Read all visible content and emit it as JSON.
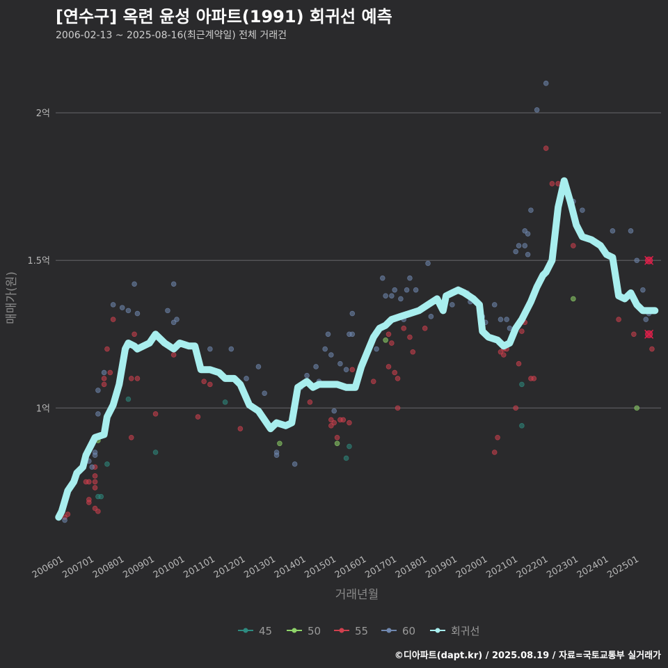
{
  "header": {
    "title": "[연수구] 옥련 윤성 아파트(1991) 회귀선 예측",
    "subtitle": "2006-02-13 ~ 2025-08-16(최근계약일) 전체 거래건"
  },
  "footer": {
    "credit": "©디아파트(dapt.kr) / 2025.08.19 / 자료=국토교통부 실거래가"
  },
  "colors": {
    "background": "#2a2a2c",
    "grid": "#5a5a5e",
    "s45": "#2e8b80",
    "s50": "#8fd46a",
    "s55": "#d0404e",
    "s60": "#7088b0",
    "regression": "#a8eeee",
    "highlight": "#e0204a"
  },
  "chart_data": {
    "type": "scatter",
    "title": "[연수구] 옥련 윤성 아파트(1991) 회귀선 예측",
    "xlabel": "거래년월",
    "ylabel": "매매가(원)",
    "x_unit": "year (decimal)",
    "y_unit": "억원",
    "xlim": [
      2005.9,
      2025.9
    ],
    "ylim": [
      0.52,
      2.17
    ],
    "x_ticks": [
      {
        "value": 2006,
        "label": "200601"
      },
      {
        "value": 2007,
        "label": "200701"
      },
      {
        "value": 2008,
        "label": "200801"
      },
      {
        "value": 2009,
        "label": "200901"
      },
      {
        "value": 2010,
        "label": "201001"
      },
      {
        "value": 2011,
        "label": "201101"
      },
      {
        "value": 2012,
        "label": "201201"
      },
      {
        "value": 2013,
        "label": "201301"
      },
      {
        "value": 2014,
        "label": "201401"
      },
      {
        "value": 2015,
        "label": "201501"
      },
      {
        "value": 2016,
        "label": "201601"
      },
      {
        "value": 2017,
        "label": "201701"
      },
      {
        "value": 2018,
        "label": "201801"
      },
      {
        "value": 2019,
        "label": "201901"
      },
      {
        "value": 2020,
        "label": "202001"
      },
      {
        "value": 2021,
        "label": "202101"
      },
      {
        "value": 2022,
        "label": "202201"
      },
      {
        "value": 2023,
        "label": "202301"
      },
      {
        "value": 2024,
        "label": "202401"
      },
      {
        "value": 2025,
        "label": "202501"
      }
    ],
    "y_ticks": [
      {
        "value": 1.0,
        "label": "1억"
      },
      {
        "value": 1.5,
        "label": "1.5억"
      },
      {
        "value": 2.0,
        "label": "2억"
      }
    ],
    "legend": {
      "position": "bottom",
      "items": [
        {
          "key": "s45",
          "label": "45"
        },
        {
          "key": "s50",
          "label": "50"
        },
        {
          "key": "s55",
          "label": "55"
        },
        {
          "key": "s60",
          "label": "60"
        },
        {
          "key": "regression",
          "label": "회귀선"
        }
      ]
    },
    "series": [
      {
        "name": "45",
        "color_key": "s45",
        "points": [
          [
            2007.3,
            0.7
          ],
          [
            2007.4,
            0.7
          ],
          [
            2007.6,
            0.81
          ],
          [
            2008.3,
            1.03
          ],
          [
            2009.2,
            0.85
          ],
          [
            2011.5,
            1.02
          ],
          [
            2015.5,
            0.83
          ],
          [
            2015.6,
            0.87
          ],
          [
            2021.3,
            1.08
          ],
          [
            2021.3,
            0.94
          ]
        ]
      },
      {
        "name": "50",
        "color_key": "s50",
        "points": [
          [
            2007.3,
            0.89
          ],
          [
            2013.3,
            0.88
          ],
          [
            2015.2,
            0.88
          ],
          [
            2016.8,
            1.23
          ],
          [
            2023.0,
            1.37
          ],
          [
            2025.1,
            1.0
          ]
        ]
      },
      {
        "name": "55",
        "color_key": "s55",
        "points": [
          [
            2006.2,
            0.63
          ],
          [
            2006.3,
            0.64
          ],
          [
            2006.9,
            0.75
          ],
          [
            2007.0,
            0.75
          ],
          [
            2007.0,
            0.69
          ],
          [
            2007.0,
            0.68
          ],
          [
            2007.2,
            0.73
          ],
          [
            2007.2,
            0.66
          ],
          [
            2007.2,
            0.75
          ],
          [
            2007.2,
            0.77
          ],
          [
            2007.2,
            0.8
          ],
          [
            2007.3,
            0.65
          ],
          [
            2007.5,
            1.1
          ],
          [
            2007.5,
            1.08
          ],
          [
            2007.6,
            1.2
          ],
          [
            2007.7,
            1.12
          ],
          [
            2007.8,
            1.3
          ],
          [
            2008.4,
            1.1
          ],
          [
            2008.4,
            0.9
          ],
          [
            2008.5,
            1.25
          ],
          [
            2008.6,
            1.1
          ],
          [
            2009.2,
            0.98
          ],
          [
            2009.8,
            1.18
          ],
          [
            2010.6,
            0.97
          ],
          [
            2010.8,
            1.09
          ],
          [
            2011.0,
            1.08
          ],
          [
            2012.0,
            0.93
          ],
          [
            2014.3,
            1.02
          ],
          [
            2015.0,
            0.96
          ],
          [
            2015.0,
            0.94
          ],
          [
            2015.1,
            0.95
          ],
          [
            2015.2,
            0.9
          ],
          [
            2015.3,
            0.96
          ],
          [
            2015.4,
            0.96
          ],
          [
            2015.6,
            0.95
          ],
          [
            2015.7,
            1.13
          ],
          [
            2016.4,
            1.09
          ],
          [
            2016.9,
            1.25
          ],
          [
            2016.9,
            1.14
          ],
          [
            2017.0,
            1.22
          ],
          [
            2017.1,
            1.12
          ],
          [
            2017.2,
            1.1
          ],
          [
            2017.2,
            1.0
          ],
          [
            2017.4,
            1.27
          ],
          [
            2017.6,
            1.24
          ],
          [
            2017.7,
            1.19
          ],
          [
            2018.1,
            1.27
          ],
          [
            2020.4,
            0.85
          ],
          [
            2020.5,
            0.9
          ],
          [
            2020.6,
            1.19
          ],
          [
            2020.7,
            1.18
          ],
          [
            2020.7,
            1.2
          ],
          [
            2020.8,
            1.2
          ],
          [
            2021.0,
            1.25
          ],
          [
            2021.1,
            1.0
          ],
          [
            2021.2,
            1.15
          ],
          [
            2021.3,
            1.26
          ],
          [
            2021.4,
            1.29
          ],
          [
            2021.6,
            1.1
          ],
          [
            2021.7,
            1.1
          ],
          [
            2022.1,
            1.88
          ],
          [
            2022.3,
            1.76
          ],
          [
            2022.5,
            1.76
          ],
          [
            2023.0,
            1.55
          ],
          [
            2024.5,
            1.3
          ],
          [
            2025.0,
            1.25
          ],
          [
            2025.6,
            1.2
          ]
        ]
      },
      {
        "name": "60",
        "color_key": "s60",
        "points": [
          [
            2006.2,
            0.62
          ],
          [
            2007.0,
            0.82
          ],
          [
            2007.1,
            0.8
          ],
          [
            2007.2,
            0.84
          ],
          [
            2007.2,
            0.85
          ],
          [
            2007.3,
            0.98
          ],
          [
            2007.3,
            1.06
          ],
          [
            2007.5,
            1.12
          ],
          [
            2007.8,
            1.35
          ],
          [
            2008.1,
            1.34
          ],
          [
            2008.3,
            1.33
          ],
          [
            2008.5,
            1.42
          ],
          [
            2008.6,
            1.32
          ],
          [
            2009.2,
            1.24
          ],
          [
            2009.6,
            1.33
          ],
          [
            2009.8,
            1.42
          ],
          [
            2009.8,
            1.29
          ],
          [
            2009.9,
            1.3
          ],
          [
            2011.0,
            1.2
          ],
          [
            2011.7,
            1.2
          ],
          [
            2012.2,
            1.1
          ],
          [
            2012.6,
            1.14
          ],
          [
            2012.8,
            1.05
          ],
          [
            2013.2,
            0.85
          ],
          [
            2013.2,
            0.84
          ],
          [
            2013.8,
            0.81
          ],
          [
            2014.0,
            1.07
          ],
          [
            2014.2,
            1.11
          ],
          [
            2014.3,
            1.08
          ],
          [
            2014.5,
            1.14
          ],
          [
            2014.6,
            1.09
          ],
          [
            2014.8,
            1.2
          ],
          [
            2014.9,
            1.25
          ],
          [
            2015.0,
            1.18
          ],
          [
            2015.1,
            0.99
          ],
          [
            2015.3,
            1.15
          ],
          [
            2015.5,
            1.13
          ],
          [
            2015.6,
            1.25
          ],
          [
            2015.7,
            1.25
          ],
          [
            2015.7,
            1.32
          ],
          [
            2016.5,
            1.2
          ],
          [
            2016.7,
            1.44
          ],
          [
            2016.8,
            1.38
          ],
          [
            2017.0,
            1.38
          ],
          [
            2017.1,
            1.4
          ],
          [
            2017.3,
            1.37
          ],
          [
            2017.4,
            1.3
          ],
          [
            2017.5,
            1.4
          ],
          [
            2017.6,
            1.44
          ],
          [
            2017.8,
            1.4
          ],
          [
            2018.2,
            1.49
          ],
          [
            2018.3,
            1.31
          ],
          [
            2018.5,
            1.37
          ],
          [
            2019.0,
            1.35
          ],
          [
            2019.5,
            1.39
          ],
          [
            2019.6,
            1.36
          ],
          [
            2020.0,
            1.31
          ],
          [
            2020.1,
            1.29
          ],
          [
            2020.4,
            1.35
          ],
          [
            2020.6,
            1.3
          ],
          [
            2020.8,
            1.3
          ],
          [
            2020.9,
            1.27
          ],
          [
            2021.1,
            1.53
          ],
          [
            2021.2,
            1.55
          ],
          [
            2021.4,
            1.55
          ],
          [
            2021.4,
            1.6
          ],
          [
            2021.5,
            1.59
          ],
          [
            2021.5,
            1.52
          ],
          [
            2021.6,
            1.67
          ],
          [
            2021.8,
            2.01
          ],
          [
            2022.1,
            2.1
          ],
          [
            2022.5,
            1.68
          ],
          [
            2022.7,
            1.76
          ],
          [
            2023.0,
            1.7
          ],
          [
            2023.3,
            1.67
          ],
          [
            2024.3,
            1.6
          ],
          [
            2024.9,
            1.6
          ],
          [
            2025.1,
            1.5
          ],
          [
            2025.3,
            1.4
          ],
          [
            2025.4,
            1.3
          ],
          [
            2025.5,
            1.32
          ]
        ]
      }
    ],
    "regression_line": [
      [
        2006.0,
        0.63
      ],
      [
        2006.1,
        0.65
      ],
      [
        2006.3,
        0.72
      ],
      [
        2006.5,
        0.75
      ],
      [
        2006.6,
        0.78
      ],
      [
        2006.8,
        0.8
      ],
      [
        2006.9,
        0.84
      ],
      [
        2007.1,
        0.88
      ],
      [
        2007.2,
        0.9
      ],
      [
        2007.5,
        0.91
      ],
      [
        2007.6,
        0.97
      ],
      [
        2007.8,
        1.01
      ],
      [
        2008.0,
        1.08
      ],
      [
        2008.2,
        1.2
      ],
      [
        2008.3,
        1.22
      ],
      [
        2008.5,
        1.21
      ],
      [
        2008.6,
        1.2
      ],
      [
        2009.0,
        1.22
      ],
      [
        2009.2,
        1.25
      ],
      [
        2009.5,
        1.22
      ],
      [
        2009.8,
        1.2
      ],
      [
        2010.0,
        1.22
      ],
      [
        2010.3,
        1.21
      ],
      [
        2010.5,
        1.21
      ],
      [
        2010.7,
        1.13
      ],
      [
        2011.0,
        1.13
      ],
      [
        2011.3,
        1.12
      ],
      [
        2011.5,
        1.1
      ],
      [
        2011.8,
        1.1
      ],
      [
        2012.0,
        1.08
      ],
      [
        2012.3,
        1.01
      ],
      [
        2012.6,
        0.99
      ],
      [
        2012.8,
        0.96
      ],
      [
        2013.0,
        0.93
      ],
      [
        2013.2,
        0.95
      ],
      [
        2013.5,
        0.94
      ],
      [
        2013.7,
        0.95
      ],
      [
        2013.9,
        1.07
      ],
      [
        2014.2,
        1.09
      ],
      [
        2014.4,
        1.07
      ],
      [
        2014.6,
        1.08
      ],
      [
        2014.9,
        1.08
      ],
      [
        2015.2,
        1.08
      ],
      [
        2015.5,
        1.07
      ],
      [
        2015.8,
        1.07
      ],
      [
        2016.0,
        1.14
      ],
      [
        2016.2,
        1.19
      ],
      [
        2016.4,
        1.24
      ],
      [
        2016.6,
        1.27
      ],
      [
        2016.8,
        1.28
      ],
      [
        2017.0,
        1.3
      ],
      [
        2017.3,
        1.31
      ],
      [
        2017.6,
        1.32
      ],
      [
        2017.9,
        1.33
      ],
      [
        2018.2,
        1.35
      ],
      [
        2018.5,
        1.37
      ],
      [
        2018.7,
        1.33
      ],
      [
        2018.8,
        1.38
      ],
      [
        2019.0,
        1.39
      ],
      [
        2019.2,
        1.4
      ],
      [
        2019.4,
        1.39
      ],
      [
        2019.7,
        1.37
      ],
      [
        2019.9,
        1.35
      ],
      [
        2020.0,
        1.26
      ],
      [
        2020.2,
        1.24
      ],
      [
        2020.5,
        1.23
      ],
      [
        2020.7,
        1.21
      ],
      [
        2020.9,
        1.22
      ],
      [
        2021.1,
        1.27
      ],
      [
        2021.3,
        1.3
      ],
      [
        2021.6,
        1.36
      ],
      [
        2021.8,
        1.41
      ],
      [
        2022.0,
        1.45
      ],
      [
        2022.1,
        1.46
      ],
      [
        2022.3,
        1.5
      ],
      [
        2022.5,
        1.68
      ],
      [
        2022.7,
        1.77
      ],
      [
        2022.9,
        1.7
      ],
      [
        2023.1,
        1.62
      ],
      [
        2023.3,
        1.58
      ],
      [
        2023.6,
        1.57
      ],
      [
        2023.9,
        1.55
      ],
      [
        2024.1,
        1.52
      ],
      [
        2024.3,
        1.51
      ],
      [
        2024.5,
        1.38
      ],
      [
        2024.7,
        1.37
      ],
      [
        2024.9,
        1.39
      ],
      [
        2025.1,
        1.35
      ],
      [
        2025.3,
        1.33
      ],
      [
        2025.5,
        1.33
      ],
      [
        2025.7,
        1.33
      ]
    ],
    "highlighted_points": [
      [
        2025.5,
        1.5
      ],
      [
        2025.5,
        1.25
      ]
    ]
  }
}
